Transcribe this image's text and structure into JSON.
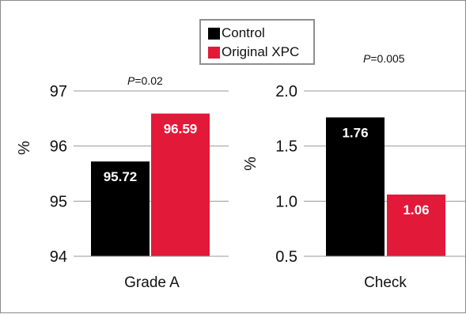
{
  "legend": {
    "items": [
      {
        "label": "Control",
        "color": "#000000"
      },
      {
        "label": "Original XPC",
        "color": "#e3193a"
      }
    ]
  },
  "chart_data": [
    {
      "type": "bar",
      "categories": [
        "Grade A"
      ],
      "xlabel": "Grade A",
      "ylabel": "%",
      "ylim": [
        94,
        97
      ],
      "yticks": [
        "94",
        "95",
        "96",
        "97"
      ],
      "annotation": {
        "italic": "P",
        "text": "=0.02"
      },
      "grid": true,
      "series": [
        {
          "name": "Control",
          "values": [
            95.72
          ],
          "labels": [
            "95.72"
          ],
          "color": "#000000"
        },
        {
          "name": "Original XPC",
          "values": [
            96.59
          ],
          "labels": [
            "96.59"
          ],
          "color": "#e3193a"
        }
      ]
    },
    {
      "type": "bar",
      "categories": [
        "Check"
      ],
      "xlabel": "Check",
      "ylabel": "%",
      "ylim": [
        0.5,
        2.0
      ],
      "yticks": [
        "0.5",
        "1.0",
        "1.5",
        "2.0"
      ],
      "annotation": {
        "italic": "P",
        "text": "=0.005"
      },
      "grid": true,
      "series": [
        {
          "name": "Control",
          "values": [
            1.76
          ],
          "labels": [
            "1.76"
          ],
          "color": "#000000"
        },
        {
          "name": "Original XPC",
          "values": [
            1.06
          ],
          "labels": [
            "1.06"
          ],
          "color": "#e3193a"
        }
      ]
    }
  ]
}
